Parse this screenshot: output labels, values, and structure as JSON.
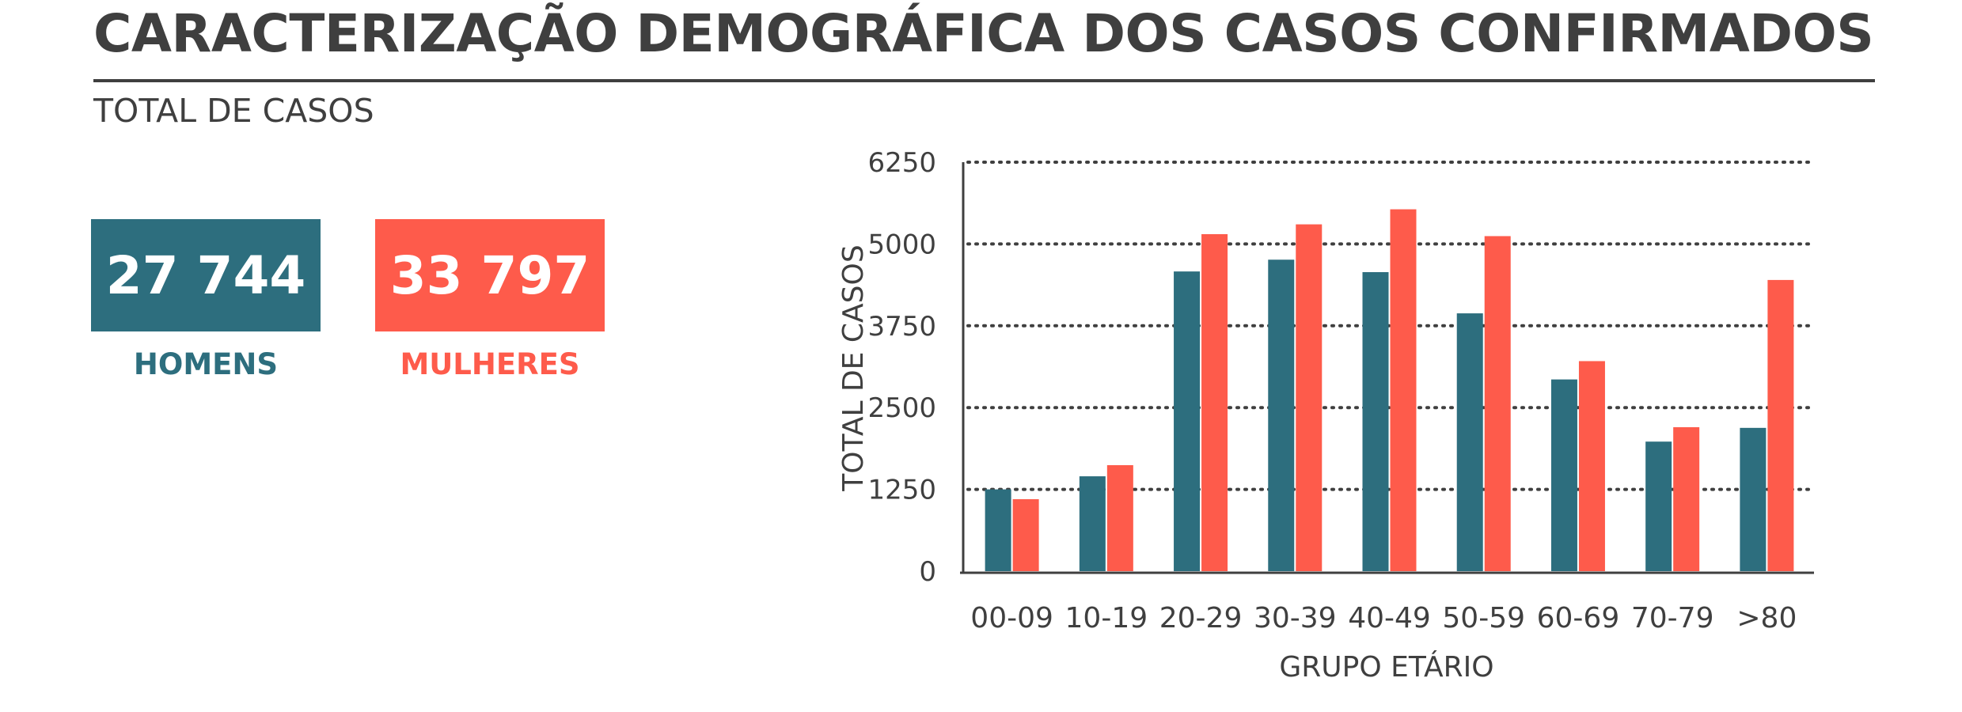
{
  "header": {
    "title": "CARACTERIZAÇÃO DEMOGRÁFICA DOS CASOS CONFIRMADOS",
    "section_label": "TOTAL DE CASOS"
  },
  "kpis": {
    "men": {
      "value": "27 744",
      "label": "HOMENS",
      "color": "#2d6e7e"
    },
    "women": {
      "value": "33 797",
      "label": "MULHERES",
      "color": "#fe5b4b"
    }
  },
  "chart_data": {
    "type": "bar",
    "categories": [
      "00-09",
      "10-19",
      "20-29",
      "30-39",
      "40-49",
      "50-59",
      "60-69",
      "70-79",
      ">80"
    ],
    "series": [
      {
        "name": "HOMENS",
        "color": "#2d6e7e",
        "values": [
          1250,
          1450,
          4580,
          4760,
          4570,
          3940,
          2930,
          1980,
          2190
        ]
      },
      {
        "name": "MULHERES",
        "color": "#fe5b4b",
        "values": [
          1100,
          1620,
          5150,
          5300,
          5530,
          5120,
          3210,
          2200,
          4450
        ]
      }
    ],
    "ylim": [
      0,
      6250
    ],
    "yticks": [
      0,
      1250,
      2500,
      3750,
      5000,
      6250
    ],
    "ytick_labels": [
      "0",
      "1250",
      "2500",
      "3750",
      "5000",
      "6250"
    ],
    "xlabel": "GRUPO ETÁRIO",
    "ylabel": "TOTAL DE CASOS",
    "grid": "horizontal-dotted"
  }
}
